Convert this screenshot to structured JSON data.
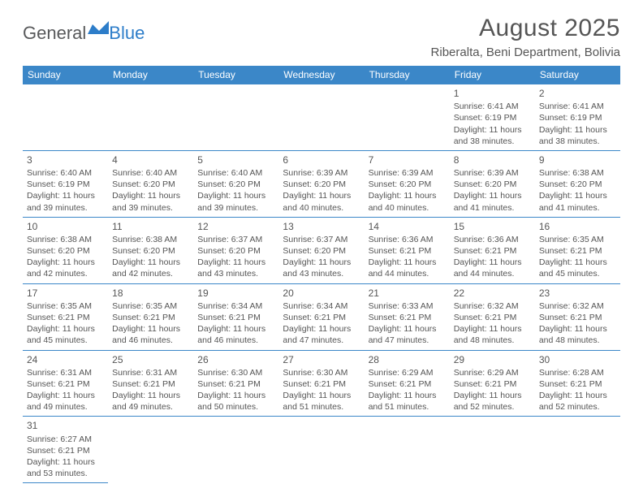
{
  "logo": {
    "part1": "General",
    "part2": "Blue"
  },
  "title": "August 2025",
  "location": "Riberalta, Beni Department, Bolivia",
  "colors": {
    "header_bg": "#3b87c8",
    "header_text": "#ffffff",
    "text": "#555555",
    "border": "#3b87c8",
    "logo_gray": "#58595b",
    "logo_blue": "#2d7dc9"
  },
  "weekdays": [
    "Sunday",
    "Monday",
    "Tuesday",
    "Wednesday",
    "Thursday",
    "Friday",
    "Saturday"
  ],
  "weeks": [
    [
      null,
      null,
      null,
      null,
      null,
      {
        "n": "1",
        "sr": "6:41 AM",
        "ss": "6:19 PM",
        "dl": "11 hours and 38 minutes."
      },
      {
        "n": "2",
        "sr": "6:41 AM",
        "ss": "6:19 PM",
        "dl": "11 hours and 38 minutes."
      }
    ],
    [
      {
        "n": "3",
        "sr": "6:40 AM",
        "ss": "6:19 PM",
        "dl": "11 hours and 39 minutes."
      },
      {
        "n": "4",
        "sr": "6:40 AM",
        "ss": "6:20 PM",
        "dl": "11 hours and 39 minutes."
      },
      {
        "n": "5",
        "sr": "6:40 AM",
        "ss": "6:20 PM",
        "dl": "11 hours and 39 minutes."
      },
      {
        "n": "6",
        "sr": "6:39 AM",
        "ss": "6:20 PM",
        "dl": "11 hours and 40 minutes."
      },
      {
        "n": "7",
        "sr": "6:39 AM",
        "ss": "6:20 PM",
        "dl": "11 hours and 40 minutes."
      },
      {
        "n": "8",
        "sr": "6:39 AM",
        "ss": "6:20 PM",
        "dl": "11 hours and 41 minutes."
      },
      {
        "n": "9",
        "sr": "6:38 AM",
        "ss": "6:20 PM",
        "dl": "11 hours and 41 minutes."
      }
    ],
    [
      {
        "n": "10",
        "sr": "6:38 AM",
        "ss": "6:20 PM",
        "dl": "11 hours and 42 minutes."
      },
      {
        "n": "11",
        "sr": "6:38 AM",
        "ss": "6:20 PM",
        "dl": "11 hours and 42 minutes."
      },
      {
        "n": "12",
        "sr": "6:37 AM",
        "ss": "6:20 PM",
        "dl": "11 hours and 43 minutes."
      },
      {
        "n": "13",
        "sr": "6:37 AM",
        "ss": "6:20 PM",
        "dl": "11 hours and 43 minutes."
      },
      {
        "n": "14",
        "sr": "6:36 AM",
        "ss": "6:21 PM",
        "dl": "11 hours and 44 minutes."
      },
      {
        "n": "15",
        "sr": "6:36 AM",
        "ss": "6:21 PM",
        "dl": "11 hours and 44 minutes."
      },
      {
        "n": "16",
        "sr": "6:35 AM",
        "ss": "6:21 PM",
        "dl": "11 hours and 45 minutes."
      }
    ],
    [
      {
        "n": "17",
        "sr": "6:35 AM",
        "ss": "6:21 PM",
        "dl": "11 hours and 45 minutes."
      },
      {
        "n": "18",
        "sr": "6:35 AM",
        "ss": "6:21 PM",
        "dl": "11 hours and 46 minutes."
      },
      {
        "n": "19",
        "sr": "6:34 AM",
        "ss": "6:21 PM",
        "dl": "11 hours and 46 minutes."
      },
      {
        "n": "20",
        "sr": "6:34 AM",
        "ss": "6:21 PM",
        "dl": "11 hours and 47 minutes."
      },
      {
        "n": "21",
        "sr": "6:33 AM",
        "ss": "6:21 PM",
        "dl": "11 hours and 47 minutes."
      },
      {
        "n": "22",
        "sr": "6:32 AM",
        "ss": "6:21 PM",
        "dl": "11 hours and 48 minutes."
      },
      {
        "n": "23",
        "sr": "6:32 AM",
        "ss": "6:21 PM",
        "dl": "11 hours and 48 minutes."
      }
    ],
    [
      {
        "n": "24",
        "sr": "6:31 AM",
        "ss": "6:21 PM",
        "dl": "11 hours and 49 minutes."
      },
      {
        "n": "25",
        "sr": "6:31 AM",
        "ss": "6:21 PM",
        "dl": "11 hours and 49 minutes."
      },
      {
        "n": "26",
        "sr": "6:30 AM",
        "ss": "6:21 PM",
        "dl": "11 hours and 50 minutes."
      },
      {
        "n": "27",
        "sr": "6:30 AM",
        "ss": "6:21 PM",
        "dl": "11 hours and 51 minutes."
      },
      {
        "n": "28",
        "sr": "6:29 AM",
        "ss": "6:21 PM",
        "dl": "11 hours and 51 minutes."
      },
      {
        "n": "29",
        "sr": "6:29 AM",
        "ss": "6:21 PM",
        "dl": "11 hours and 52 minutes."
      },
      {
        "n": "30",
        "sr": "6:28 AM",
        "ss": "6:21 PM",
        "dl": "11 hours and 52 minutes."
      }
    ],
    [
      {
        "n": "31",
        "sr": "6:27 AM",
        "ss": "6:21 PM",
        "dl": "11 hours and 53 minutes."
      },
      null,
      null,
      null,
      null,
      null,
      null
    ]
  ],
  "labels": {
    "sunrise_prefix": "Sunrise: ",
    "sunset_prefix": "Sunset: ",
    "daylight_prefix": "Daylight: "
  }
}
